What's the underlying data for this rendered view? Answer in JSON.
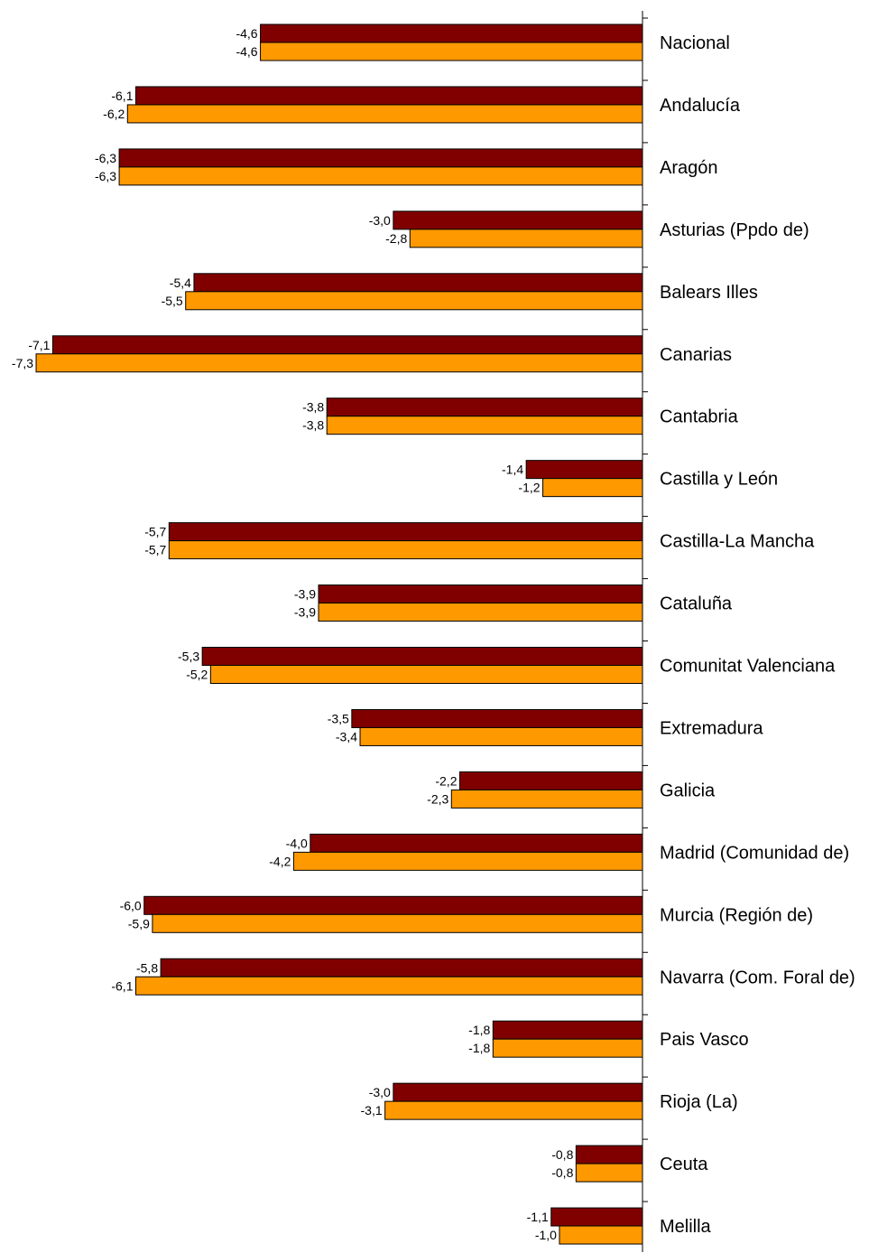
{
  "chart_data": {
    "type": "bar",
    "orientation": "horizontal",
    "categories": [
      "Nacional",
      "Andalucía",
      "Aragón",
      "Asturias (Ppdo de)",
      "Balears Illes",
      "Canarias",
      "Cantabria",
      "Castilla y León",
      "Castilla-La Mancha",
      "Cataluña",
      "Comunitat Valenciana",
      "Extremadura",
      "Galicia",
      "Madrid (Comunidad de)",
      "Murcia (Región de)",
      "Navarra (Com. Foral de)",
      "Pais Vasco",
      "Rioja (La)",
      "Ceuta",
      "Melilla"
    ],
    "series": [
      {
        "color": "#800000",
        "values": [
          -4.6,
          -6.1,
          -6.3,
          -3.0,
          -5.4,
          -7.1,
          -3.8,
          -1.4,
          -5.7,
          -3.9,
          -5.3,
          -3.5,
          -2.2,
          -4.0,
          -6.0,
          -5.8,
          -1.8,
          -3.0,
          -0.8,
          -1.1
        ],
        "labels": [
          "-4,6",
          "-6,1",
          "-6,3",
          "-3,0",
          "-5,4",
          "-7,1",
          "-3,8",
          "-1,4",
          "-5,7",
          "-3,9",
          "-5,3",
          "-3,5",
          "-2,2",
          "-4,0",
          "-6,0",
          "-5,8",
          "-1,8",
          "-3,0",
          "-0,8",
          "-1,1"
        ]
      },
      {
        "color": "#FF9900",
        "values": [
          -4.6,
          -6.2,
          -6.3,
          -2.8,
          -5.5,
          -7.3,
          -3.8,
          -1.2,
          -5.7,
          -3.9,
          -5.2,
          -3.4,
          -2.3,
          -4.2,
          -5.9,
          -6.1,
          -1.8,
          -3.1,
          -0.8,
          -1.0
        ],
        "labels": [
          "-4,6",
          "-6,2",
          "-6,3",
          "-2,8",
          "-5,5",
          "-7,3",
          "-3,8",
          "-1,2",
          "-5,7",
          "-3,9",
          "-5,2",
          "-3,4",
          "-2,3",
          "-4,2",
          "-5,9",
          "-6,1",
          "-1,8",
          "-3,1",
          "-0,8",
          "-1,0"
        ]
      }
    ],
    "xlim": [
      -7.3,
      0
    ],
    "legend": "none",
    "grid": false
  }
}
